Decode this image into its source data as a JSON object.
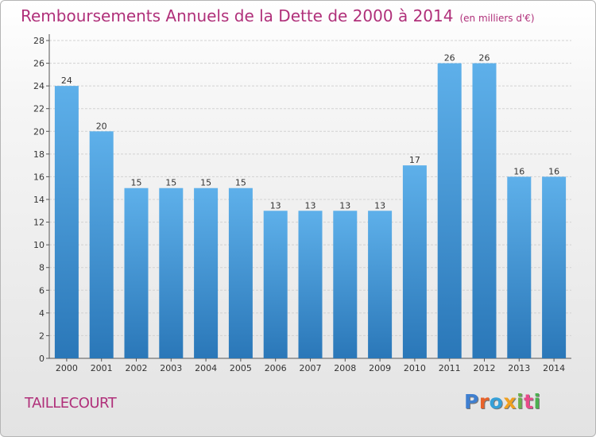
{
  "title": "Remboursements Annuels de la Dette de 2000 à 2014",
  "unit": "(en milliers d'€)",
  "commune": "TAILLECOURT",
  "logo": [
    "P",
    "r",
    "o",
    "x",
    "i",
    "t",
    "i"
  ],
  "colors": {
    "title": "#b0307a",
    "bar_top": "#5eb0ea",
    "bar_bottom": "#2a77b8",
    "logo": [
      "#3f7fd0",
      "#e8622a",
      "#36a0d8",
      "#f0a020",
      "#6ab04c",
      "#e84a8a",
      "#4cb050"
    ]
  },
  "chart_data": {
    "type": "bar",
    "categories": [
      "2000",
      "2001",
      "2002",
      "2003",
      "2004",
      "2005",
      "2006",
      "2007",
      "2008",
      "2009",
      "2010",
      "2011",
      "2012",
      "2013",
      "2014"
    ],
    "values": [
      24,
      20,
      15,
      15,
      15,
      15,
      13,
      13,
      13,
      13,
      17,
      26,
      26,
      16,
      16
    ],
    "ylim": [
      0,
      28
    ],
    "yticks": [
      0,
      2,
      4,
      6,
      8,
      10,
      12,
      14,
      16,
      18,
      20,
      22,
      24,
      26,
      28
    ],
    "grid": true,
    "title": "Remboursements Annuels de la Dette de 2000 à 2014",
    "xlabel": "",
    "ylabel": ""
  }
}
